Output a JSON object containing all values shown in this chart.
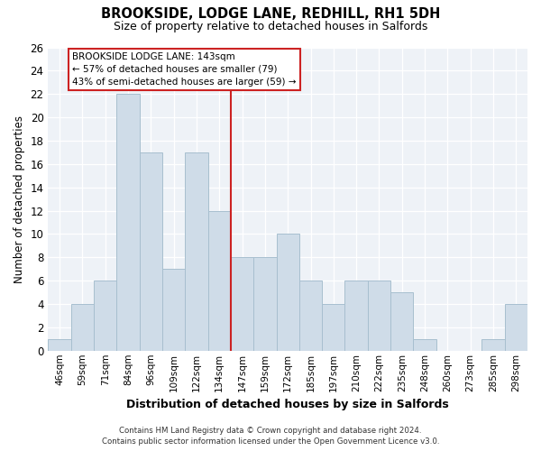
{
  "title": "BROOKSIDE, LODGE LANE, REDHILL, RH1 5DH",
  "subtitle": "Size of property relative to detached houses in Salfords",
  "xlabel": "Distribution of detached houses by size in Salfords",
  "ylabel": "Number of detached properties",
  "bin_labels": [
    "46sqm",
    "59sqm",
    "71sqm",
    "84sqm",
    "96sqm",
    "109sqm",
    "122sqm",
    "134sqm",
    "147sqm",
    "159sqm",
    "172sqm",
    "185sqm",
    "197sqm",
    "210sqm",
    "222sqm",
    "235sqm",
    "248sqm",
    "260sqm",
    "273sqm",
    "285sqm",
    "298sqm"
  ],
  "bar_values": [
    1,
    4,
    6,
    22,
    17,
    7,
    17,
    12,
    8,
    8,
    10,
    6,
    4,
    6,
    6,
    5,
    1,
    0,
    0,
    1,
    4
  ],
  "bar_color": "#cfdce8",
  "bar_edge_color": "#a8bfcf",
  "annotation_title": "BROOKSIDE LODGE LANE: 143sqm",
  "annotation_line1": "← 57% of detached houses are smaller (79)",
  "annotation_line2": "43% of semi-detached houses are larger (59) →",
  "ylim": [
    0,
    26
  ],
  "yticks": [
    0,
    2,
    4,
    6,
    8,
    10,
    12,
    14,
    16,
    18,
    20,
    22,
    24,
    26
  ],
  "ref_line_x": 7.5,
  "footer_line1": "Contains HM Land Registry data © Crown copyright and database right 2024.",
  "footer_line2": "Contains public sector information licensed under the Open Government Licence v3.0.",
  "background_color": "#eef2f7"
}
